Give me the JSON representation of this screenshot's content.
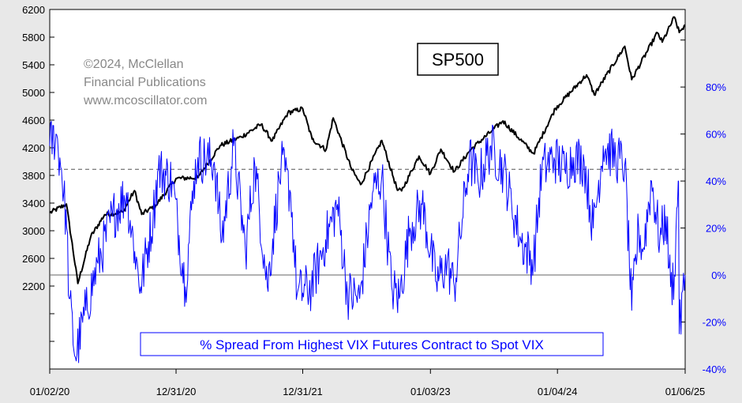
{
  "chart_data": {
    "type": "line",
    "title": "",
    "xlabel": "",
    "ylabel": "",
    "x_ticks": [
      "01/02/20",
      "12/31/20",
      "12/31/21",
      "01/03/23",
      "01/04/24",
      "01/06/25"
    ],
    "x_range": [
      "2020-01-02",
      "2025-01-06"
    ],
    "grid": false,
    "left_axis": {
      "ticks": [
        6200,
        5800,
        5400,
        5000,
        4600,
        4200,
        3800,
        3400,
        3000,
        2600,
        2200
      ],
      "range": [
        1000,
        6200
      ],
      "color": "#000000"
    },
    "right_axis": {
      "ticks": [
        "80%",
        "60%",
        "40%",
        "20%",
        "0%",
        "-20%",
        "-40%"
      ],
      "values": [
        80,
        60,
        40,
        20,
        0,
        -20,
        -40
      ],
      "range": [
        -40,
        113
      ],
      "color": "#0000ff"
    },
    "reference_lines": [
      {
        "axis": "right",
        "value": 45,
        "style": "dashed"
      },
      {
        "axis": "right",
        "value": 0,
        "style": "solid"
      }
    ],
    "series": [
      {
        "name": "SP500",
        "axis": "left",
        "color": "#000000",
        "x": [
          "2020-01-02",
          "2020-02-19",
          "2020-03-23",
          "2020-04-29",
          "2020-06-08",
          "2020-07-31",
          "2020-09-02",
          "2020-09-23",
          "2020-11-03",
          "2020-12-31",
          "2021-03-04",
          "2021-05-07",
          "2021-07-07",
          "2021-09-02",
          "2021-10-04",
          "2021-11-18",
          "2021-12-31",
          "2022-01-27",
          "2022-03-08",
          "2022-03-29",
          "2022-05-20",
          "2022-06-16",
          "2022-08-16",
          "2022-09-30",
          "2022-10-12",
          "2022-12-01",
          "2023-01-03",
          "2023-02-02",
          "2023-03-13",
          "2023-04-28",
          "2023-06-30",
          "2023-07-31",
          "2023-10-27",
          "2023-12-29",
          "2024-03-28",
          "2024-04-19",
          "2024-07-16",
          "2024-08-05",
          "2024-10-18",
          "2024-11-01",
          "2024-12-06",
          "2024-12-20",
          "2025-01-06"
        ],
        "y": [
          3258,
          3386,
          2237,
          2912,
          3232,
          3271,
          3580,
          3237,
          3370,
          3756,
          3768,
          4232,
          4358,
          4537,
          4300,
          4705,
          4766,
          4326,
          4170,
          4631,
          3901,
          3667,
          4305,
          3585,
          3577,
          4080,
          3824,
          4179,
          3855,
          4169,
          4450,
          4588,
          4117,
          4769,
          5254,
          4967,
          5667,
          5186,
          5864,
          5728,
          6090,
          5867,
          5975
        ]
      },
      {
        "name": "% Spread From Highest VIX Futures Contract to Spot VIX",
        "axis": "right",
        "color": "#0000ff",
        "x": [
          "2020-01-02",
          "2020-01-20",
          "2020-02-05",
          "2020-02-20",
          "2020-02-27",
          "2020-03-16",
          "2020-04-15",
          "2020-05-20",
          "2020-07-01",
          "2020-08-10",
          "2020-09-03",
          "2020-09-20",
          "2020-10-26",
          "2020-11-10",
          "2020-12-20",
          "2021-01-27",
          "2021-02-20",
          "2021-03-04",
          "2021-04-20",
          "2021-05-12",
          "2021-06-15",
          "2021-07-19",
          "2021-08-15",
          "2021-09-20",
          "2021-10-30",
          "2021-11-26",
          "2021-12-15",
          "2022-01-25",
          "2022-03-07",
          "2022-04-10",
          "2022-05-09",
          "2022-06-13",
          "2022-07-20",
          "2022-08-16",
          "2022-09-13",
          "2022-10-05",
          "2022-11-05",
          "2022-12-10",
          "2023-01-20",
          "2023-02-20",
          "2023-03-13",
          "2023-04-25",
          "2023-05-20",
          "2023-06-26",
          "2023-08-01",
          "2023-08-25",
          "2023-09-20",
          "2023-10-27",
          "2023-11-20",
          "2023-12-25",
          "2024-01-25",
          "2024-02-20",
          "2024-03-21",
          "2024-04-16",
          "2024-05-15",
          "2024-06-20",
          "2024-07-16",
          "2024-08-05",
          "2024-08-25",
          "2024-09-06",
          "2024-10-01",
          "2024-10-25",
          "2024-11-12",
          "2024-11-25",
          "2024-12-06",
          "2024-12-17",
          "2024-12-18",
          "2024-12-20",
          "2025-01-06"
        ],
        "y": [
          55,
          60,
          45,
          20,
          -10,
          -35,
          -15,
          5,
          25,
          35,
          10,
          -5,
          25,
          45,
          40,
          -5,
          40,
          50,
          48,
          15,
          55,
          10,
          47,
          -5,
          47,
          35,
          -8,
          -5,
          15,
          30,
          -8,
          -10,
          35,
          42,
          -5,
          -10,
          20,
          30,
          -3,
          5,
          -5,
          50,
          40,
          55,
          45,
          30,
          15,
          5,
          45,
          50,
          45,
          50,
          48,
          20,
          55,
          50,
          47,
          -15,
          20,
          10,
          40,
          15,
          25,
          -5,
          0,
          40,
          40,
          -25,
          0
        ]
      }
    ],
    "annotations": [
      {
        "text": "SP500",
        "boxed": true
      },
      {
        "text": "% Spread From Highest VIX Futures Contract to Spot VIX",
        "boxed": true,
        "color": "#0000ff"
      },
      {
        "text": "©2024, McClellan",
        "color": "#888888"
      },
      {
        "text": "Financial Publications",
        "color": "#888888"
      },
      {
        "text": "www.mcoscillator.com",
        "color": "#888888"
      }
    ]
  }
}
